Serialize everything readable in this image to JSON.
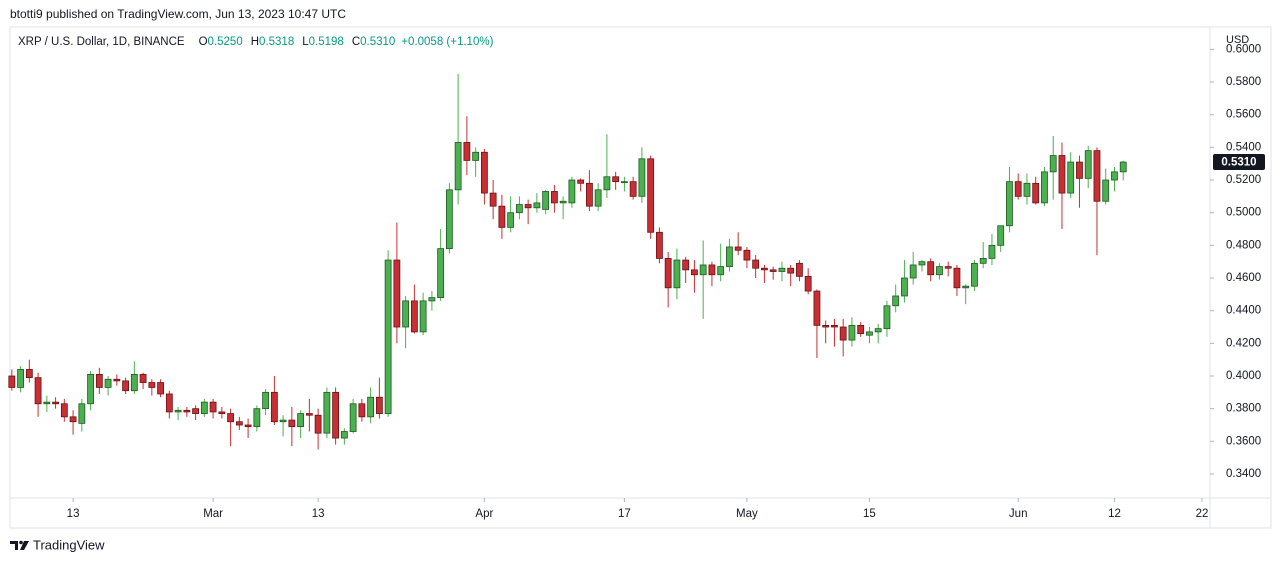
{
  "header": "btotti9 published on TradingView.com, Jun 13, 2023 10:47 UTC",
  "footer": "TradingView",
  "chart_data": {
    "type": "candlestick",
    "legend": {
      "symbol": "XRP / U.S. Dollar, 1D, BINANCE",
      "items": [
        {
          "label": "O",
          "value": "0.5250"
        },
        {
          "label": "H",
          "value": "0.5318"
        },
        {
          "label": "L",
          "value": "0.5198"
        },
        {
          "label": "C",
          "value": "0.5310"
        }
      ],
      "change": "+0.0058 (+1.10%)"
    },
    "y_axis_label": "USD",
    "price_label": "0.5310",
    "up_color": "#4caf50",
    "down_color": "#c62f33",
    "up_border": "#1e5a22",
    "down_border": "#6b1114",
    "grid": false,
    "xlim": [
      "2023-02-05T19:00:00Z",
      "2023-06-22T22:00:00Z"
    ],
    "xticks": [
      {
        "value": "2023-02-13",
        "label": "13"
      },
      {
        "value": "2023-03-01",
        "label": "Mar"
      },
      {
        "value": "2023-03-13",
        "label": "13"
      },
      {
        "value": "2023-04-01",
        "label": "Apr"
      },
      {
        "value": "2023-04-17",
        "label": "17"
      },
      {
        "value": "2023-05-01",
        "label": "May"
      },
      {
        "value": "2023-05-15",
        "label": "15"
      },
      {
        "value": "2023-06-01",
        "label": "Jun"
      },
      {
        "value": "2023-06-12",
        "label": "12"
      },
      {
        "value": "2023-06-22",
        "label": "22"
      }
    ],
    "ylim": [
      0.3253,
      0.6137
    ],
    "yticks": [
      {
        "value": 0.34,
        "label": "0.3400"
      },
      {
        "value": 0.36,
        "label": "0.3600"
      },
      {
        "value": 0.38,
        "label": "0.3800"
      },
      {
        "value": 0.4,
        "label": "0.4000"
      },
      {
        "value": 0.42,
        "label": "0.4200"
      },
      {
        "value": 0.44,
        "label": "0.4400"
      },
      {
        "value": 0.46,
        "label": "0.4600"
      },
      {
        "value": 0.48,
        "label": "0.4800"
      },
      {
        "value": 0.5,
        "label": "0.5000"
      },
      {
        "value": 0.52,
        "label": "0.5200"
      },
      {
        "value": 0.54,
        "label": "0.5400"
      },
      {
        "value": 0.56,
        "label": "0.5600"
      },
      {
        "value": 0.58,
        "label": "0.5800"
      },
      {
        "value": 0.6,
        "label": "0.6000"
      }
    ],
    "x": [
      "2023-02-06",
      "2023-02-07",
      "2023-02-08",
      "2023-02-09",
      "2023-02-10",
      "2023-02-11",
      "2023-02-12",
      "2023-02-13",
      "2023-02-14",
      "2023-02-15",
      "2023-02-16",
      "2023-02-17",
      "2023-02-18",
      "2023-02-19",
      "2023-02-20",
      "2023-02-21",
      "2023-02-22",
      "2023-02-23",
      "2023-02-24",
      "2023-02-25",
      "2023-02-26",
      "2023-02-27",
      "2023-02-28",
      "2023-03-01",
      "2023-03-02",
      "2023-03-03",
      "2023-03-04",
      "2023-03-05",
      "2023-03-06",
      "2023-03-07",
      "2023-03-08",
      "2023-03-09",
      "2023-03-10",
      "2023-03-11",
      "2023-03-12",
      "2023-03-13",
      "2023-03-14",
      "2023-03-15",
      "2023-03-16",
      "2023-03-17",
      "2023-03-18",
      "2023-03-19",
      "2023-03-20",
      "2023-03-21",
      "2023-03-22",
      "2023-03-23",
      "2023-03-24",
      "2023-03-25",
      "2023-03-26",
      "2023-03-27",
      "2023-03-28",
      "2023-03-29",
      "2023-03-30",
      "2023-03-31",
      "2023-04-01",
      "2023-04-02",
      "2023-04-03",
      "2023-04-04",
      "2023-04-05",
      "2023-04-06",
      "2023-04-07",
      "2023-04-08",
      "2023-04-09",
      "2023-04-10",
      "2023-04-11",
      "2023-04-12",
      "2023-04-13",
      "2023-04-14",
      "2023-04-15",
      "2023-04-16",
      "2023-04-17",
      "2023-04-18",
      "2023-04-19",
      "2023-04-20",
      "2023-04-21",
      "2023-04-22",
      "2023-04-23",
      "2023-04-24",
      "2023-04-25",
      "2023-04-26",
      "2023-04-27",
      "2023-04-28",
      "2023-04-29",
      "2023-04-30",
      "2023-05-01",
      "2023-05-02",
      "2023-05-03",
      "2023-05-04",
      "2023-05-05",
      "2023-05-06",
      "2023-05-07",
      "2023-05-08",
      "2023-05-09",
      "2023-05-10",
      "2023-05-11",
      "2023-05-12",
      "2023-05-13",
      "2023-05-14",
      "2023-05-15",
      "2023-05-16",
      "2023-05-17",
      "2023-05-18",
      "2023-05-19",
      "2023-05-20",
      "2023-05-21",
      "2023-05-22",
      "2023-05-23",
      "2023-05-24",
      "2023-05-25",
      "2023-05-26",
      "2023-05-27",
      "2023-05-28",
      "2023-05-29",
      "2023-05-30",
      "2023-05-31",
      "2023-06-01",
      "2023-06-02",
      "2023-06-03",
      "2023-06-04",
      "2023-06-05",
      "2023-06-06",
      "2023-06-07",
      "2023-06-08",
      "2023-06-09",
      "2023-06-10",
      "2023-06-11",
      "2023-06-12",
      "2023-06-13"
    ],
    "open": [
      0.4,
      0.393,
      0.404,
      0.399,
      0.383,
      0.384,
      0.383,
      0.375,
      0.371,
      0.383,
      0.401,
      0.393,
      0.398,
      0.397,
      0.391,
      0.401,
      0.396,
      0.396,
      0.389,
      0.378,
      0.379,
      0.38,
      0.377,
      0.384,
      0.378,
      0.377,
      0.372,
      0.37,
      0.369,
      0.38,
      0.39,
      0.372,
      0.373,
      0.369,
      0.377,
      0.376,
      0.365,
      0.39,
      0.362,
      0.366,
      0.383,
      0.375,
      0.387,
      0.377,
      0.471,
      0.43,
      0.446,
      0.427,
      0.446,
      0.448,
      0.478,
      0.514,
      0.543,
      0.532,
      0.537,
      0.512,
      0.504,
      0.491,
      0.5,
      0.505,
      0.503,
      0.502,
      0.513,
      0.506,
      0.506,
      0.52,
      0.518,
      0.504,
      0.514,
      0.522,
      0.519,
      0.519,
      0.51,
      0.533,
      0.488,
      0.472,
      0.454,
      0.471,
      0.465,
      0.462,
      0.468,
      0.462,
      0.467,
      0.479,
      0.477,
      0.471,
      0.466,
      0.465,
      0.464,
      0.466,
      0.469,
      0.461,
      0.452,
      0.431,
      0.431,
      0.43,
      0.422,
      0.431,
      0.425,
      0.427,
      0.429,
      0.443,
      0.449,
      0.46,
      0.468,
      0.47,
      0.462,
      0.467,
      0.466,
      0.454,
      0.455,
      0.469,
      0.472,
      0.48,
      0.492,
      0.519,
      0.51,
      0.518,
      0.506,
      0.525,
      0.535,
      0.512,
      0.531,
      0.521,
      0.538,
      0.507,
      0.52,
      0.525
    ],
    "high": [
      0.404,
      0.406,
      0.41,
      0.402,
      0.388,
      0.387,
      0.386,
      0.379,
      0.386,
      0.403,
      0.405,
      0.4,
      0.401,
      0.399,
      0.409,
      0.402,
      0.398,
      0.398,
      0.391,
      0.381,
      0.381,
      0.382,
      0.386,
      0.386,
      0.381,
      0.38,
      0.375,
      0.374,
      0.382,
      0.392,
      0.4,
      0.376,
      0.381,
      0.379,
      0.386,
      0.38,
      0.393,
      0.393,
      0.368,
      0.386,
      0.386,
      0.393,
      0.399,
      0.477,
      0.494,
      0.449,
      0.456,
      0.451,
      0.452,
      0.49,
      0.518,
      0.585,
      0.559,
      0.54,
      0.539,
      0.52,
      0.511,
      0.51,
      0.51,
      0.508,
      0.512,
      0.514,
      0.517,
      0.51,
      0.522,
      0.521,
      0.526,
      0.518,
      0.548,
      0.525,
      0.522,
      0.522,
      0.54,
      0.535,
      0.491,
      0.476,
      0.478,
      0.473,
      0.471,
      0.483,
      0.47,
      0.481,
      0.484,
      0.488,
      0.479,
      0.474,
      0.468,
      0.467,
      0.47,
      0.468,
      0.471,
      0.466,
      0.453,
      0.434,
      0.435,
      0.435,
      0.436,
      0.433,
      0.43,
      0.432,
      0.446,
      0.456,
      0.471,
      0.476,
      0.471,
      0.472,
      0.469,
      0.47,
      0.468,
      0.456,
      0.471,
      0.482,
      0.487,
      0.492,
      0.528,
      0.524,
      0.524,
      0.522,
      0.528,
      0.547,
      0.543,
      0.537,
      0.535,
      0.541,
      0.54,
      0.527,
      0.528,
      0.5318
    ],
    "low": [
      0.391,
      0.39,
      0.396,
      0.375,
      0.378,
      0.38,
      0.372,
      0.364,
      0.366,
      0.379,
      0.389,
      0.388,
      0.394,
      0.389,
      0.389,
      0.392,
      0.388,
      0.387,
      0.374,
      0.373,
      0.375,
      0.373,
      0.375,
      0.374,
      0.374,
      0.357,
      0.367,
      0.362,
      0.366,
      0.376,
      0.37,
      0.363,
      0.357,
      0.362,
      0.366,
      0.355,
      0.362,
      0.358,
      0.358,
      0.365,
      0.372,
      0.371,
      0.374,
      0.375,
      0.42,
      0.417,
      0.426,
      0.425,
      0.44,
      0.446,
      0.475,
      0.505,
      0.523,
      0.522,
      0.505,
      0.496,
      0.484,
      0.488,
      0.496,
      0.493,
      0.5,
      0.499,
      0.5,
      0.496,
      0.503,
      0.513,
      0.501,
      0.501,
      0.509,
      0.514,
      0.513,
      0.508,
      0.506,
      0.484,
      0.469,
      0.442,
      0.447,
      0.457,
      0.451,
      0.435,
      0.455,
      0.458,
      0.464,
      0.474,
      0.466,
      0.46,
      0.457,
      0.459,
      0.458,
      0.455,
      0.458,
      0.45,
      0.411,
      0.42,
      0.418,
      0.412,
      0.418,
      0.424,
      0.42,
      0.42,
      0.424,
      0.439,
      0.445,
      0.456,
      0.464,
      0.458,
      0.459,
      0.461,
      0.449,
      0.444,
      0.452,
      0.466,
      0.468,
      0.476,
      0.488,
      0.508,
      0.505,
      0.505,
      0.504,
      0.508,
      0.49,
      0.509,
      0.503,
      0.515,
      0.474,
      0.505,
      0.513,
      0.5198
    ],
    "close": [
      0.393,
      0.404,
      0.399,
      0.383,
      0.384,
      0.383,
      0.375,
      0.372,
      0.383,
      0.401,
      0.393,
      0.398,
      0.397,
      0.391,
      0.401,
      0.396,
      0.393,
      0.389,
      0.378,
      0.379,
      0.378,
      0.377,
      0.384,
      0.378,
      0.377,
      0.372,
      0.37,
      0.369,
      0.38,
      0.39,
      0.372,
      0.373,
      0.369,
      0.377,
      0.376,
      0.365,
      0.39,
      0.362,
      0.366,
      0.383,
      0.375,
      0.387,
      0.377,
      0.471,
      0.43,
      0.446,
      0.427,
      0.446,
      0.448,
      0.478,
      0.514,
      0.543,
      0.532,
      0.537,
      0.512,
      0.504,
      0.491,
      0.5,
      0.505,
      0.503,
      0.506,
      0.513,
      0.506,
      0.507,
      0.52,
      0.518,
      0.504,
      0.514,
      0.522,
      0.519,
      0.519,
      0.51,
      0.533,
      0.488,
      0.472,
      0.454,
      0.471,
      0.465,
      0.462,
      0.468,
      0.462,
      0.467,
      0.479,
      0.477,
      0.471,
      0.466,
      0.465,
      0.464,
      0.466,
      0.463,
      0.461,
      0.452,
      0.431,
      0.43,
      0.43,
      0.422,
      0.431,
      0.426,
      0.427,
      0.429,
      0.443,
      0.449,
      0.46,
      0.468,
      0.47,
      0.462,
      0.467,
      0.466,
      0.454,
      0.455,
      0.469,
      0.472,
      0.48,
      0.492,
      0.519,
      0.51,
      0.518,
      0.506,
      0.525,
      0.535,
      0.512,
      0.531,
      0.521,
      0.538,
      0.507,
      0.52,
      0.525,
      0.531
    ]
  }
}
